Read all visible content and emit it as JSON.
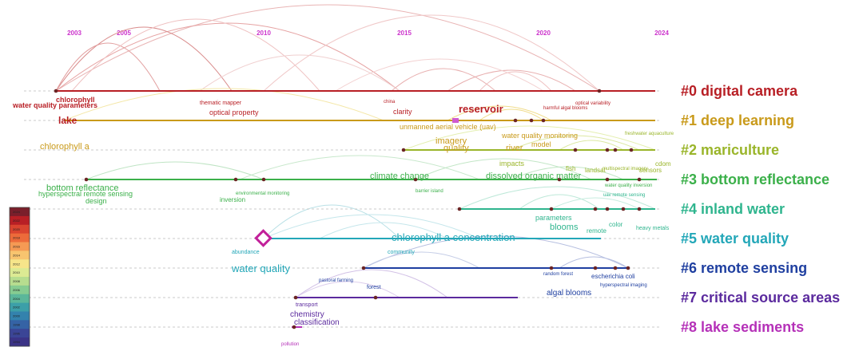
{
  "years": [
    "2003",
    "2005",
    "2010",
    "2015",
    "2020",
    "2024"
  ],
  "clusters": [
    {
      "id": "#0",
      "name": "digital camera",
      "color": "#b81f25"
    },
    {
      "id": "#1",
      "name": "deep learning",
      "color": "#c99a1a"
    },
    {
      "id": "#2",
      "name": "mariculture",
      "color": "#9ab52a"
    },
    {
      "id": "#3",
      "name": "bottom reflectance",
      "color": "#3bb04a"
    },
    {
      "id": "#4",
      "name": "inland water",
      "color": "#2fb58e"
    },
    {
      "id": "#5",
      "name": "water quality",
      "color": "#23a7b8"
    },
    {
      "id": "#6",
      "name": "remote sensing",
      "color": "#1f3fa0"
    },
    {
      "id": "#7",
      "name": "critical source areas",
      "color": "#5b2a9e"
    },
    {
      "id": "#8",
      "name": "lake sediments",
      "color": "#b531b8"
    }
  ],
  "keywords": [
    {
      "text": "chlorophyll",
      "row": 0,
      "size": 9,
      "bold": true
    },
    {
      "text": "water quality parameters",
      "row": 0,
      "size": 9,
      "bold": true
    },
    {
      "text": "thematic mapper",
      "row": 0,
      "size": 7,
      "bold": false
    },
    {
      "text": "china",
      "row": 0,
      "size": 6,
      "bold": false
    },
    {
      "text": "harmful algal blooms",
      "row": 0,
      "size": 6,
      "bold": false
    },
    {
      "text": "optical variability",
      "row": 0,
      "size": 6,
      "bold": false
    },
    {
      "text": "lake",
      "row": 0,
      "size": 12,
      "bold": true
    },
    {
      "text": "optical property",
      "row": 0,
      "size": 9,
      "bold": false
    },
    {
      "text": "clarity",
      "row": 0,
      "size": 9,
      "bold": false
    },
    {
      "text": "reservoir",
      "row": 0,
      "size": 13,
      "bold": true
    },
    {
      "text": "unmanned aerial vehicle (uav)",
      "row": 1,
      "size": 9,
      "bold": false
    },
    {
      "text": "chlorophyll a",
      "row": 1,
      "size": 11,
      "bold": false
    },
    {
      "text": "water quality monitoring",
      "row": 1,
      "size": 9,
      "bold": false
    },
    {
      "text": "imagery",
      "row": 1,
      "size": 11,
      "bold": false
    },
    {
      "text": "model",
      "row": 1,
      "size": 9,
      "bold": false
    },
    {
      "text": "quality",
      "row": 1,
      "size": 11,
      "bold": false
    },
    {
      "text": "river",
      "row": 1,
      "size": 11,
      "bold": false
    },
    {
      "text": "freshwater aquaculture",
      "row": 2,
      "size": 6,
      "bold": false
    },
    {
      "text": "cdom",
      "row": 2,
      "size": 8,
      "bold": false
    },
    {
      "text": "impacts",
      "row": 2,
      "size": 9,
      "bold": false
    },
    {
      "text": "fish",
      "row": 2,
      "size": 8,
      "bold": false
    },
    {
      "text": "landsat",
      "row": 2,
      "size": 8,
      "bold": false
    },
    {
      "text": "multispectral imagery",
      "row": 2,
      "size": 6,
      "bold": false
    },
    {
      "text": "sensors",
      "row": 2,
      "size": 8,
      "bold": false
    },
    {
      "text": "bottom reflectance",
      "row": 3,
      "size": 11,
      "bold": false
    },
    {
      "text": "climate change",
      "row": 3,
      "size": 11,
      "bold": false
    },
    {
      "text": "dissolved organic matter",
      "row": 3,
      "size": 11,
      "bold": false
    },
    {
      "text": "water quality inversion",
      "row": 3,
      "size": 6,
      "bold": false
    },
    {
      "text": "hyperspectral remote sensing",
      "row": 3,
      "size": 9,
      "bold": false
    },
    {
      "text": "design",
      "row": 3,
      "size": 9,
      "bold": false
    },
    {
      "text": "environmental monitoring",
      "row": 3,
      "size": 6,
      "bold": false
    },
    {
      "text": "inversion",
      "row": 3,
      "size": 8,
      "bold": false
    },
    {
      "text": "barrier island",
      "row": 3,
      "size": 6,
      "bold": false
    },
    {
      "text": "uav remote sensing",
      "row": 4,
      "size": 6,
      "bold": false
    },
    {
      "text": "parameters",
      "row": 4,
      "size": 9,
      "bold": false
    },
    {
      "text": "blooms",
      "row": 4,
      "size": 11,
      "bold": false
    },
    {
      "text": "color",
      "row": 4,
      "size": 8,
      "bold": false
    },
    {
      "text": "remote",
      "row": 4,
      "size": 8,
      "bold": false
    },
    {
      "text": "heavy metals",
      "row": 4,
      "size": 7,
      "bold": false
    },
    {
      "text": "chlorophyll a concentration",
      "row": 5,
      "size": 13,
      "bold": false
    },
    {
      "text": "abundance",
      "row": 5,
      "size": 7,
      "bold": false
    },
    {
      "text": "community",
      "row": 5,
      "size": 7,
      "bold": false
    },
    {
      "text": "water quality",
      "row": 5,
      "size": 13,
      "bold": false
    },
    {
      "text": "random forest",
      "row": 6,
      "size": 6,
      "bold": false
    },
    {
      "text": "escherichia coli",
      "row": 6,
      "size": 8,
      "bold": false
    },
    {
      "text": "hyperspectral imaging",
      "row": 6,
      "size": 6,
      "bold": false
    },
    {
      "text": "pastoral farming",
      "row": 6,
      "size": 6,
      "bold": false
    },
    {
      "text": "forest",
      "row": 6,
      "size": 7,
      "bold": false
    },
    {
      "text": "algal blooms",
      "row": 6,
      "size": 10,
      "bold": false
    },
    {
      "text": "transport",
      "row": 7,
      "size": 7,
      "bold": false
    },
    {
      "text": "chemistry",
      "row": 7,
      "size": 10,
      "bold": false
    },
    {
      "text": "classification",
      "row": 7,
      "size": 10,
      "bold": false
    },
    {
      "text": "pollution",
      "row": 8,
      "size": 6,
      "bold": false
    }
  ],
  "legend_colors": [
    "#7a1f2b",
    "#b81f25",
    "#d9442f",
    "#ec6b3a",
    "#f59a54",
    "#f8c46f",
    "#f6e58a",
    "#dcea93",
    "#b7dd8f",
    "#86cc91",
    "#5bb79a",
    "#3c9fa8",
    "#3382ad",
    "#3563a5",
    "#3b4596",
    "#3b3386"
  ],
  "legend_years": [
    "2024",
    "2022",
    "2020",
    "2018",
    "2016",
    "2014",
    "2012",
    "2010",
    "2008",
    "2006",
    "2004",
    "2002",
    "2000",
    "1998",
    "1996",
    "1994"
  ]
}
